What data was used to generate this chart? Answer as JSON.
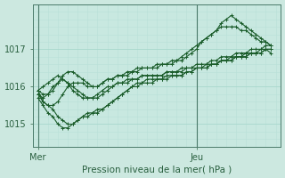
{
  "xlabel": "Pression niveau de la mer( hPa )",
  "bg_color": "#cce8e0",
  "plot_bg_color": "#c8e8e0",
  "grid_color_major": "#a8d8cc",
  "grid_color_minor": "#b8e0d8",
  "line_color": "#1a5c2a",
  "tick_color": "#2a6040",
  "axis_color": "#4a7a6a",
  "ylim": [
    1014.4,
    1018.2
  ],
  "xlim": [
    -1,
    49
  ],
  "yticks": [
    1015,
    1016,
    1017
  ],
  "xtick_labels": [
    "Mer",
    "Jeu"
  ],
  "xtick_positions": [
    0,
    32
  ],
  "vline_positions": [
    0,
    32
  ],
  "n_points": 48,
  "series": [
    [
      1015.9,
      1015.6,
      1015.5,
      1015.4,
      1015.2,
      1015.1,
      1015.0,
      1015.0,
      1015.1,
      1015.2,
      1015.3,
      1015.3,
      1015.4,
      1015.4,
      1015.5,
      1015.6,
      1015.7,
      1015.8,
      1015.9,
      1016.0,
      1016.1,
      1016.1,
      1016.2,
      1016.2,
      1016.2,
      1016.2,
      1016.3,
      1016.3,
      1016.3,
      1016.3,
      1016.4,
      1016.4,
      1016.5,
      1016.5,
      1016.5,
      1016.6,
      1016.6,
      1016.7,
      1016.7,
      1016.8,
      1016.8,
      1016.8,
      1016.9,
      1016.9,
      1016.9,
      1017.0,
      1017.0,
      1017.0
    ],
    [
      1015.7,
      1015.5,
      1015.3,
      1015.2,
      1015.0,
      1014.9,
      1014.9,
      1015.0,
      1015.1,
      1015.2,
      1015.2,
      1015.3,
      1015.3,
      1015.4,
      1015.5,
      1015.6,
      1015.7,
      1015.8,
      1015.9,
      1016.0,
      1016.0,
      1016.1,
      1016.1,
      1016.1,
      1016.2,
      1016.2,
      1016.2,
      1016.3,
      1016.3,
      1016.3,
      1016.4,
      1016.4,
      1016.5,
      1016.5,
      1016.5,
      1016.6,
      1016.6,
      1016.7,
      1016.7,
      1016.7,
      1016.8,
      1016.8,
      1016.8,
      1016.9,
      1016.9,
      1016.9,
      1017.0,
      1016.9
    ],
    [
      1015.8,
      1015.7,
      1015.8,
      1016.0,
      1016.1,
      1016.2,
      1016.1,
      1016.0,
      1015.9,
      1015.8,
      1015.7,
      1015.7,
      1015.7,
      1015.8,
      1015.9,
      1016.0,
      1016.1,
      1016.1,
      1016.2,
      1016.2,
      1016.2,
      1016.3,
      1016.3,
      1016.3,
      1016.3,
      1016.3,
      1016.4,
      1016.4,
      1016.4,
      1016.4,
      1016.5,
      1016.5,
      1016.5,
      1016.5,
      1016.6,
      1016.6,
      1016.6,
      1016.7,
      1016.7,
      1016.7,
      1016.8,
      1016.8,
      1016.8,
      1016.9,
      1016.9,
      1016.9,
      1017.0,
      1017.0
    ],
    [
      1015.9,
      1016.0,
      1016.1,
      1016.2,
      1016.3,
      1016.2,
      1016.1,
      1015.9,
      1015.8,
      1015.7,
      1015.7,
      1015.7,
      1015.8,
      1015.9,
      1016.0,
      1016.0,
      1016.1,
      1016.1,
      1016.1,
      1016.2,
      1016.2,
      1016.3,
      1016.3,
      1016.3,
      1016.3,
      1016.3,
      1016.4,
      1016.4,
      1016.4,
      1016.5,
      1016.5,
      1016.5,
      1016.6,
      1016.6,
      1016.6,
      1016.7,
      1016.7,
      1016.8,
      1016.8,
      1016.8,
      1016.9,
      1016.9,
      1016.9,
      1017.0,
      1017.0,
      1017.0,
      1017.1,
      1017.1
    ],
    [
      1015.9,
      1015.8,
      1015.8,
      1015.9,
      1016.1,
      1016.3,
      1016.4,
      1016.4,
      1016.3,
      1016.2,
      1016.1,
      1016.0,
      1016.0,
      1016.1,
      1016.2,
      1016.2,
      1016.3,
      1016.3,
      1016.4,
      1016.4,
      1016.5,
      1016.5,
      1016.5,
      1016.5,
      1016.6,
      1016.6,
      1016.6,
      1016.7,
      1016.7,
      1016.8,
      1016.9,
      1017.0,
      1017.1,
      1017.2,
      1017.3,
      1017.4,
      1017.5,
      1017.6,
      1017.6,
      1017.6,
      1017.6,
      1017.5,
      1017.5,
      1017.4,
      1017.3,
      1017.2,
      1017.2,
      1017.1
    ],
    [
      1015.8,
      1015.6,
      1015.5,
      1015.5,
      1015.6,
      1015.8,
      1016.0,
      1016.1,
      1016.1,
      1016.1,
      1016.0,
      1016.0,
      1016.0,
      1016.1,
      1016.2,
      1016.2,
      1016.3,
      1016.3,
      1016.3,
      1016.4,
      1016.4,
      1016.5,
      1016.5,
      1016.5,
      1016.5,
      1016.6,
      1016.6,
      1016.6,
      1016.7,
      1016.7,
      1016.8,
      1016.9,
      1017.0,
      1017.2,
      1017.3,
      1017.4,
      1017.5,
      1017.7,
      1017.8,
      1017.9,
      1017.8,
      1017.7,
      1017.6,
      1017.5,
      1017.4,
      1017.3,
      1017.2,
      1017.1
    ]
  ]
}
